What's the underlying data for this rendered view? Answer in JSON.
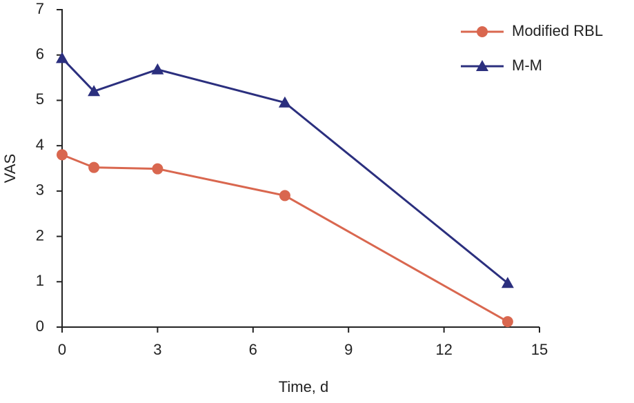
{
  "chart_data": {
    "type": "line",
    "x_label": "Time, d",
    "y_label": "VAS",
    "x": [
      0,
      1,
      3,
      7,
      14
    ],
    "series": [
      {
        "name": "Modified RBL",
        "color": "#d9674f",
        "marker": "circle",
        "values": [
          3.8,
          3.52,
          3.49,
          2.9,
          0.12
        ]
      },
      {
        "name": "M-M",
        "color": "#2b2f7e",
        "marker": "triangle",
        "values": [
          5.93,
          5.2,
          5.68,
          4.95,
          0.97
        ]
      }
    ],
    "xlim": [
      0,
      15
    ],
    "xticks": [
      0,
      3,
      6,
      9,
      12,
      15
    ],
    "ylim": [
      0,
      7
    ],
    "yticks": [
      0,
      1,
      2,
      3,
      4,
      5,
      6,
      7
    ],
    "grid": false,
    "legend": "upper right"
  }
}
